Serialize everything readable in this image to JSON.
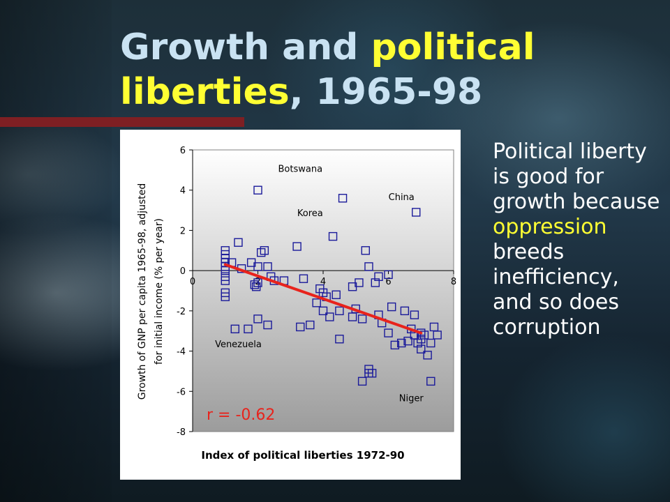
{
  "slide": {
    "title_part1": "Growth and ",
    "title_part2": "political",
    "title_part3": "liberties",
    "title_part4": ", 1965-98",
    "side_text_part1": "Political liberty is good for growth because ",
    "side_text_part2": "oppression",
    "side_text_part3": " breeds inefficiency, and so does corruption",
    "colors": {
      "title": "#c9e2f2",
      "highlight": "#ffff33",
      "body_text": "#ffffff",
      "accent_bar": "#7e1f23"
    }
  },
  "chart_data": {
    "type": "scatter",
    "xlabel": "Index of political liberties 1972-90",
    "ylabel_line1": "Growth of GNP per capita 1965-98, adjusted",
    "ylabel_line2": "for initial income (% per year)",
    "xlim": [
      0,
      8
    ],
    "ylim": [
      -8,
      6
    ],
    "xticks": [
      "0",
      "2",
      "4",
      "6",
      "8"
    ],
    "yticks": [
      "6",
      "4",
      "2",
      "0",
      "-2",
      "-4",
      "-6",
      "-8"
    ],
    "grid": false,
    "marker": "hollow-square",
    "marker_color": "#1a1a9a",
    "fit_line": {
      "x": [
        1,
        7
      ],
      "y": [
        0.3,
        -3.1
      ],
      "color": "#e8231c"
    },
    "correlation_label": "r = -0.62",
    "annotations": [
      {
        "text": "Botswana",
        "x": 3.3,
        "y": 4.9
      },
      {
        "text": "Korea",
        "x": 3.6,
        "y": 2.7
      },
      {
        "text": "China",
        "x": 6.4,
        "y": 3.5
      },
      {
        "text": "Venezuela",
        "x": 1.4,
        "y": -3.8
      },
      {
        "text": "Niger",
        "x": 6.7,
        "y": -6.5
      }
    ],
    "points": [
      [
        1,
        1
      ],
      [
        1,
        0.8
      ],
      [
        1,
        0.6
      ],
      [
        1,
        0.4
      ],
      [
        1,
        0.2
      ],
      [
        1,
        0
      ],
      [
        1,
        -0.3
      ],
      [
        1,
        -0.5
      ],
      [
        1,
        -1.1
      ],
      [
        1,
        -1.3
      ],
      [
        1.2,
        0.4
      ],
      [
        1.3,
        -2.9
      ],
      [
        1.4,
        1.4
      ],
      [
        1.5,
        0.1
      ],
      [
        1.7,
        -2.9
      ],
      [
        1.8,
        0.4
      ],
      [
        1.9,
        -0.7
      ],
      [
        1.95,
        -0.8
      ],
      [
        2,
        0.2
      ],
      [
        2,
        -0.6
      ],
      [
        2,
        -2.4
      ],
      [
        2,
        4
      ],
      [
        2.1,
        0.9
      ],
      [
        2.2,
        1
      ],
      [
        2.3,
        -2.7
      ],
      [
        2.3,
        0.2
      ],
      [
        2.4,
        -0.3
      ],
      [
        2.5,
        -0.5
      ],
      [
        2.8,
        -0.5
      ],
      [
        3.2,
        1.2
      ],
      [
        3.3,
        -2.8
      ],
      [
        3.4,
        -0.4
      ],
      [
        3.6,
        -2.7
      ],
      [
        3.8,
        -1.6
      ],
      [
        3.9,
        -0.9
      ],
      [
        4,
        -2
      ],
      [
        4,
        -1.1
      ],
      [
        4.1,
        -1.3
      ],
      [
        4.2,
        -2.3
      ],
      [
        4.3,
        1.7
      ],
      [
        4.4,
        -1.2
      ],
      [
        4.5,
        -2
      ],
      [
        4.5,
        -3.4
      ],
      [
        4.6,
        3.6
      ],
      [
        4.9,
        -2.3
      ],
      [
        4.9,
        -0.8
      ],
      [
        5,
        -1.9
      ],
      [
        5.1,
        -0.6
      ],
      [
        5.2,
        -2.4
      ],
      [
        5.2,
        -5.5
      ],
      [
        5.3,
        1
      ],
      [
        5.4,
        0.2
      ],
      [
        5.4,
        -5.1
      ],
      [
        5.4,
        -4.9
      ],
      [
        5.5,
        -5.1
      ],
      [
        5.6,
        -0.6
      ],
      [
        5.7,
        -2.2
      ],
      [
        5.7,
        -0.3
      ],
      [
        5.8,
        -2.6
      ],
      [
        6,
        -3.1
      ],
      [
        6,
        -0.2
      ],
      [
        6.1,
        -1.8
      ],
      [
        6.2,
        -3.7
      ],
      [
        6.4,
        -3.6
      ],
      [
        6.5,
        -2
      ],
      [
        6.6,
        -3.5
      ],
      [
        6.7,
        -2.9
      ],
      [
        6.8,
        -2.2
      ],
      [
        6.8,
        -3.2
      ],
      [
        6.85,
        2.9
      ],
      [
        6.9,
        -3.6
      ],
      [
        7,
        -3.1
      ],
      [
        7,
        -3.4
      ],
      [
        7,
        -3.9
      ],
      [
        7.1,
        -3.2
      ],
      [
        7.2,
        -4.2
      ],
      [
        7.3,
        -5.5
      ],
      [
        7.3,
        -3.6
      ],
      [
        7.4,
        -2.8
      ],
      [
        7.5,
        -3.2
      ]
    ]
  }
}
